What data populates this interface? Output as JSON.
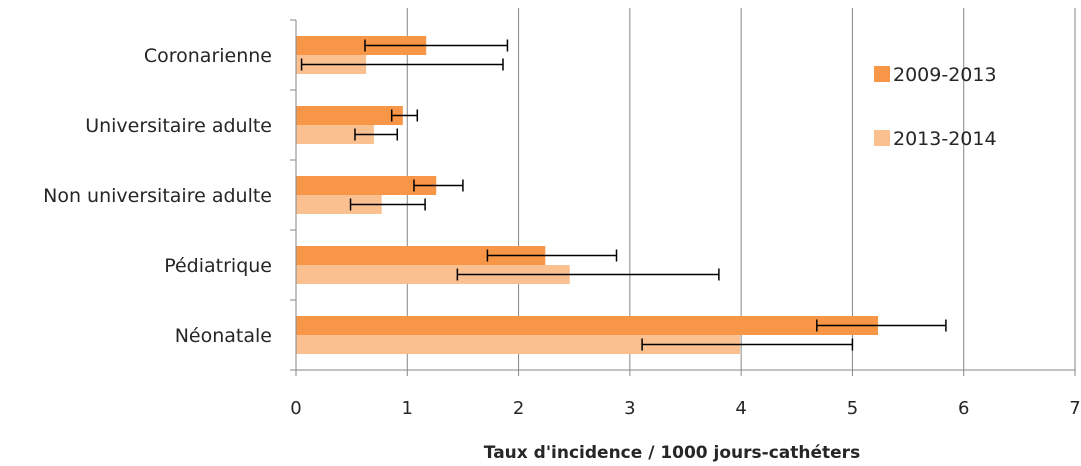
{
  "chart_data": {
    "type": "bar",
    "orientation": "horizontal",
    "categories": [
      "Coronarienne",
      "Universitaire adulte",
      "Non universitaire adulte",
      "Pédiatrique",
      "Néonatale"
    ],
    "series": [
      {
        "name": "2009-2013",
        "color": "#f79646",
        "values": [
          1.17,
          0.96,
          1.26,
          2.24,
          5.23
        ],
        "error_low": [
          0.62,
          0.86,
          1.06,
          1.72,
          4.68
        ],
        "error_high": [
          1.9,
          1.09,
          1.5,
          2.88,
          5.84
        ]
      },
      {
        "name": "2013-2014",
        "color": "#fac090",
        "values": [
          0.63,
          0.7,
          0.77,
          2.46,
          3.99
        ],
        "error_low": [
          0.05,
          0.53,
          0.49,
          1.45,
          3.11
        ],
        "error_high": [
          1.86,
          0.91,
          1.16,
          3.8,
          5.0
        ]
      }
    ],
    "xlabel": "Taux d'incidence  / 1000 jours-cathéters",
    "xlim": [
      0,
      7
    ],
    "xticks": [
      "0",
      "1",
      "2",
      "3",
      "4",
      "5",
      "6",
      "7"
    ],
    "grid": "vertical",
    "legend_position": "right"
  }
}
